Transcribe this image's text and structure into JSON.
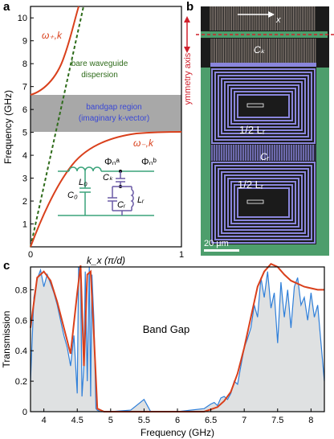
{
  "panels": {
    "a": {
      "letter": "a",
      "ylabel": "Frequency (GHz)",
      "xlabel": "k_x (π/d)",
      "yticks": [
        "1",
        "2",
        "3",
        "4",
        "5",
        "6",
        "7",
        "8",
        "9",
        "10"
      ],
      "xticks": [
        "0",
        "1"
      ],
      "omega_plus": "ω₊,k",
      "omega_minus": "ω₋,k",
      "waveguide_label_1": "bare waveguide",
      "waveguide_label_2": "dispersion",
      "bandgap_label_1": "bandgap region",
      "bandgap_label_2": "(imaginary k-vector)",
      "circuit": {
        "phi_a": "Φₙᵃ",
        "phi_b": "Φₙᵇ",
        "L0": "L₀",
        "C0": "C₀",
        "Ck": "Cₖ",
        "Cr": "Cᵣ",
        "Lr": "Lᵣ"
      }
    },
    "b": {
      "letter": "b",
      "x_label": "x",
      "ck_label": "Cₖ",
      "half_lr_top": "1/2 Lᵣ",
      "cr_label": "Cᵣ",
      "half_lr_bottom": "1/2 Lᵣ",
      "symmetry_label": "symmetry axis",
      "scalebar": "20 μm"
    },
    "c": {
      "letter": "c",
      "ylabel": "Transmission",
      "xlabel": "Frequency (GHz)",
      "yticks": [
        "0",
        "0.2",
        "0.4",
        "0.6",
        "0.8"
      ],
      "xticks": [
        "4",
        "4.5",
        "5",
        "5.5",
        "6",
        "6.5",
        "7",
        "7.5",
        "8"
      ],
      "bandgap_text": "Band Gap"
    }
  },
  "colors": {
    "orange": "#d9401c",
    "green_dash": "#2e6b1a",
    "bandgap_gray": "#a8a8a8",
    "bandgap_text": "#3a48d6",
    "circuit_green": "#3aa37a",
    "circuit_purple": "#6a5aa6",
    "blue_trace": "#2f7fd9",
    "gray_fill": "#dfe1e2",
    "device_purple": "#8a86dd",
    "device_green": "#4d9e6c",
    "symmetry_red": "#d0202c"
  },
  "chart_data": [
    {
      "type": "line",
      "panel": "a",
      "xlabel": "k_x (π/d)",
      "ylabel": "Frequency (GHz)",
      "xlim": [
        0,
        1
      ],
      "ylim": [
        0,
        10.5
      ],
      "bandgap_region": [
        4.9,
        6.4
      ],
      "series": [
        {
          "name": "ω₊,k",
          "x": [
            0,
            0.05,
            0.1,
            0.15,
            0.2,
            0.25,
            0.3,
            0.35
          ],
          "y": [
            6.4,
            6.6,
            7.1,
            7.8,
            8.6,
            9.4,
            10.1,
            10.5
          ]
        },
        {
          "name": "ω₋,k",
          "x": [
            0,
            0.05,
            0.1,
            0.15,
            0.2,
            0.3,
            0.4,
            0.5,
            0.6,
            0.8,
            1.0
          ],
          "y": [
            0,
            1.0,
            2.0,
            2.8,
            3.4,
            4.1,
            4.45,
            4.62,
            4.72,
            4.8,
            4.82
          ]
        },
        {
          "name": "bare waveguide dispersion",
          "x": [
            0,
            0.35
          ],
          "y": [
            0,
            10.5
          ]
        }
      ]
    },
    {
      "type": "line",
      "panel": "c",
      "xlabel": "Frequency (GHz)",
      "ylabel": "Transmission",
      "xlim": [
        3.8,
        8.2
      ],
      "ylim": [
        0,
        0.95
      ],
      "series": [
        {
          "name": "model",
          "x": [
            3.8,
            3.9,
            4.0,
            4.1,
            4.2,
            4.3,
            4.4,
            4.5,
            4.55,
            4.6,
            4.65,
            4.7,
            4.75,
            4.8,
            4.9,
            5.0,
            5.5,
            6.0,
            6.4,
            6.6,
            6.7,
            6.8,
            6.9,
            7.0,
            7.1,
            7.2,
            7.3,
            7.4,
            7.5,
            7.6,
            7.7,
            7.8,
            7.9,
            8.0,
            8.1,
            8.2
          ],
          "y": [
            0.55,
            0.88,
            0.92,
            0.86,
            0.72,
            0.55,
            0.38,
            0.78,
            0.96,
            0.3,
            0.9,
            0.92,
            0.5,
            0.02,
            0.0,
            0.0,
            0.0,
            0.0,
            0.0,
            0.03,
            0.07,
            0.13,
            0.25,
            0.42,
            0.62,
            0.82,
            0.92,
            0.97,
            0.95,
            0.9,
            0.86,
            0.84,
            0.82,
            0.81,
            0.8,
            0.8
          ]
        },
        {
          "name": "measured",
          "x": [
            3.8,
            3.85,
            3.9,
            3.95,
            4.0,
            4.05,
            4.1,
            4.15,
            4.2,
            4.25,
            4.3,
            4.35,
            4.4,
            4.45,
            4.5,
            4.52,
            4.55,
            4.57,
            4.6,
            4.62,
            4.65,
            4.68,
            4.7,
            4.72,
            4.75,
            4.78,
            4.8,
            4.85,
            5.0,
            5.3,
            5.5,
            5.6,
            6.0,
            6.4,
            6.5,
            6.55,
            6.6,
            6.65,
            6.7,
            6.75,
            6.8,
            6.85,
            6.9,
            6.95,
            7.0,
            7.05,
            7.1,
            7.15,
            7.2,
            7.25,
            7.3,
            7.35,
            7.4,
            7.45,
            7.5,
            7.55,
            7.6,
            7.65,
            7.7,
            7.75,
            7.8,
            7.85,
            7.9,
            7.95,
            8.0,
            8.05,
            8.1,
            8.15,
            8.2
          ],
          "y": [
            0.2,
            0.75,
            0.87,
            0.93,
            0.82,
            0.9,
            0.84,
            0.78,
            0.7,
            0.6,
            0.5,
            0.42,
            0.3,
            0.5,
            0.12,
            0.95,
            0.9,
            0.1,
            0.3,
            0.92,
            0.2,
            0.95,
            0.1,
            0.9,
            0.6,
            0.02,
            0.01,
            0.0,
            0.0,
            0.01,
            0.08,
            0.0,
            0.0,
            0.02,
            0.05,
            0.06,
            0.04,
            0.09,
            0.1,
            0.08,
            0.12,
            0.2,
            0.18,
            0.3,
            0.42,
            0.48,
            0.55,
            0.7,
            0.62,
            0.88,
            0.75,
            0.92,
            0.68,
            0.78,
            0.45,
            0.85,
            0.62,
            0.8,
            0.55,
            0.82,
            0.88,
            0.7,
            0.75,
            0.6,
            0.78,
            0.62,
            0.7,
            0.45,
            0.2
          ]
        }
      ]
    }
  ]
}
